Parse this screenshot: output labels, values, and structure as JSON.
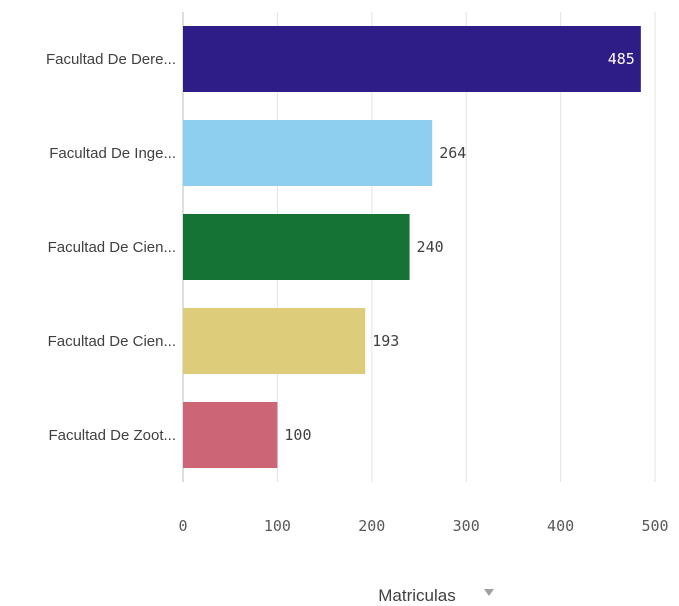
{
  "chart_data": {
    "type": "bar",
    "orientation": "horizontal",
    "categories": [
      "Facultad De Dere...",
      "Facultad De Inge...",
      "Facultad De Cien...",
      "Facultad De Cien...",
      "Facultad De Zoot..."
    ],
    "values": [
      485,
      264,
      240,
      193,
      100
    ],
    "colors": [
      "#2e1d87",
      "#8ecff0",
      "#147335",
      "#ddcc7a",
      "#cc6677"
    ],
    "data_labels": [
      "485",
      "264",
      "240",
      "193",
      "100"
    ],
    "xticks": [
      "0",
      "100",
      "200",
      "300",
      "400",
      "500"
    ],
    "xlim": [
      0,
      500
    ],
    "xlabel": "Matriculas",
    "xlabel_icon": "dropdown-triangle-icon",
    "grid": true
  }
}
